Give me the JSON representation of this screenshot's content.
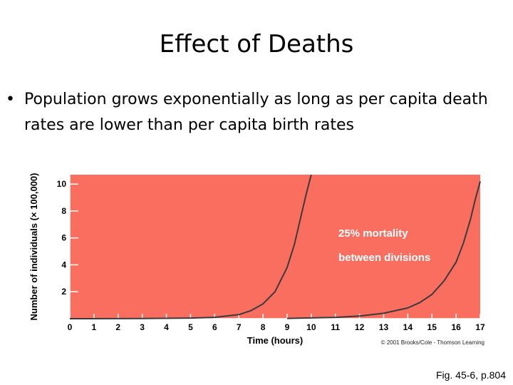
{
  "slide": {
    "title": "Effect of Deaths",
    "bullet": "Population grows exponentially as long as per capita death rates are lower than per capita birth rates",
    "fig_ref": "Fig. 45-6, p.804"
  },
  "chart_data": {
    "type": "line",
    "xlabel": "Time (hours)",
    "ylabel": "Number of individuals (× 100,000)",
    "xlim": [
      0,
      17
    ],
    "ylim": [
      0,
      10.7
    ],
    "x_ticks": [
      "0",
      "1",
      "2",
      "3",
      "4",
      "5",
      "6",
      "7",
      "8",
      "9",
      "10",
      "11",
      "12",
      "13",
      "14",
      "15",
      "16",
      "17"
    ],
    "y_ticks": [
      "2",
      "4",
      "6",
      "8",
      "10"
    ],
    "grid": false,
    "background": "#fa6e60",
    "line_color": "#3b3b3b",
    "series": [
      {
        "x": [
          0,
          3,
          5,
          6,
          7,
          7.5,
          8,
          8.5,
          9,
          9.3,
          9.6,
          9.8,
          10
        ],
        "y": [
          0,
          0.01,
          0.05,
          0.1,
          0.3,
          0.6,
          1.1,
          2.0,
          3.8,
          5.5,
          7.8,
          9.3,
          10.7
        ]
      },
      {
        "x": [
          9,
          11,
          12,
          13,
          14,
          14.5,
          15,
          15.5,
          16,
          16.3,
          16.6,
          16.8,
          17
        ],
        "y": [
          0.02,
          0.1,
          0.2,
          0.4,
          0.8,
          1.2,
          1.8,
          2.8,
          4.2,
          5.6,
          7.4,
          8.9,
          10.2
        ]
      }
    ],
    "annotation": {
      "line1": "25% mortality",
      "line2": "between divisions"
    },
    "credit": "© 2001 Brooks/Cole - Thomson Learning"
  }
}
